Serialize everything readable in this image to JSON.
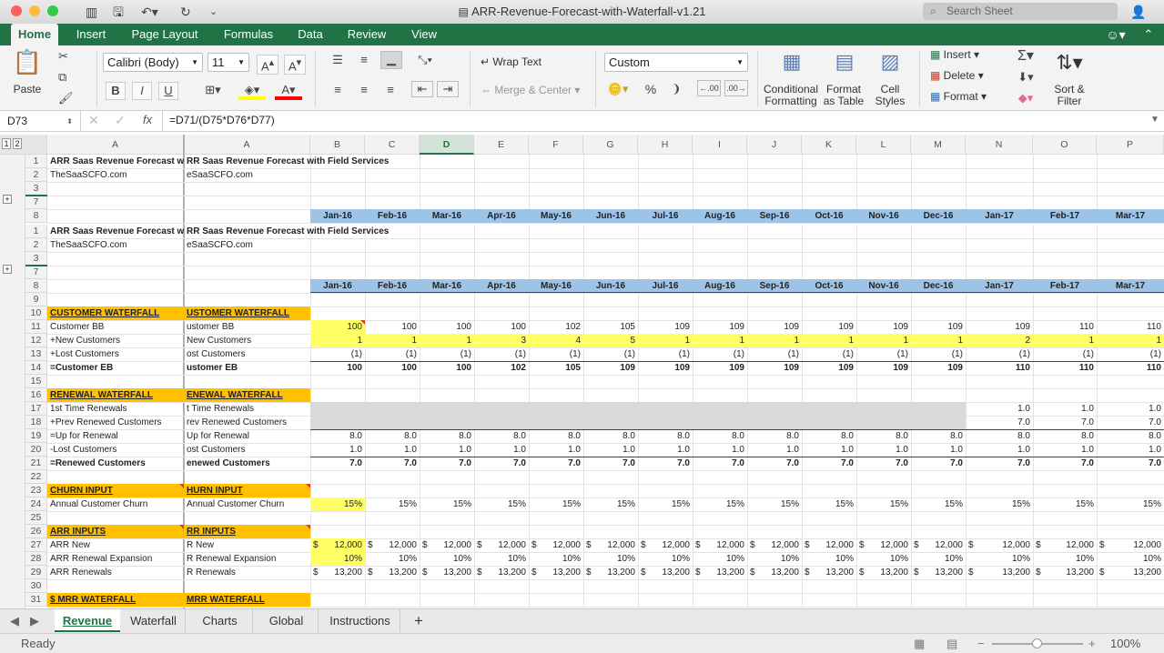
{
  "window": {
    "title": "ARR-Revenue-Forecast-with-Waterfall-v1.21",
    "search_placeholder": "Search Sheet"
  },
  "ribbon_tabs": [
    "Home",
    "Insert",
    "Page Layout",
    "Formulas",
    "Data",
    "Review",
    "View"
  ],
  "ribbon": {
    "paste": "Paste",
    "font_name": "Calibri (Body)",
    "font_size": "11",
    "bold": "B",
    "italic": "I",
    "underline": "U",
    "wrap_text": "Wrap Text",
    "merge_center": "Merge & Center",
    "number_format": "Custom",
    "percent": "%",
    "comma": "❩",
    "inc_decimal": ".00",
    "dec_decimal": ".00",
    "conditional_formatting": "Conditional Formatting",
    "format_as_table": "Format as Table",
    "cell_styles": "Cell Styles",
    "insert": "Insert",
    "delete": "Delete",
    "format": "Format",
    "sort_filter": "Sort & Filter"
  },
  "formula_bar": {
    "name_box": "D73",
    "fx": "fx",
    "formula": "=D71/(D75*D76*D77)"
  },
  "outline_levels": [
    "1",
    "2"
  ],
  "columns": [
    "A",
    "A",
    "B",
    "C",
    "D",
    "E",
    "F",
    "G",
    "H",
    "I",
    "J",
    "K",
    "L",
    "M",
    "N",
    "O",
    "P"
  ],
  "months": [
    "Jan-16",
    "Feb-16",
    "Mar-16",
    "Apr-16",
    "May-16",
    "Jun-16",
    "Jul-16",
    "Aug-16",
    "Sep-16",
    "Oct-16",
    "Nov-16",
    "Dec-16",
    "Jan-17",
    "Feb-17",
    "Mar-17"
  ],
  "frozen": {
    "title_left": "ARR Saas Revenue Forecast w",
    "title_right": "RR Saas Revenue Forecast with Field Services",
    "site_left": "TheSaaSCFO.com",
    "site_right": "eSaaSCFO.com"
  },
  "rows": [
    {
      "n": "10",
      "left": "CUSTOMER WATERFALL",
      "right": "USTOMER WATERFALL",
      "section": true,
      "vals": []
    },
    {
      "n": "11",
      "left": "Customer BB",
      "right": "ustomer BB",
      "vals": [
        "100",
        "100",
        "100",
        "100",
        "102",
        "105",
        "109",
        "109",
        "109",
        "109",
        "109",
        "109",
        "109",
        "110",
        "110"
      ]
    },
    {
      "n": "12",
      "left": "+New Customers",
      "right": "New Customers",
      "vals": [
        "1",
        "1",
        "1",
        "3",
        "4",
        "5",
        "1",
        "1",
        "1",
        "1",
        "1",
        "1",
        "2",
        "1",
        "1"
      ]
    },
    {
      "n": "13",
      "left": "+Lost Customers",
      "right": "ost Customers",
      "vals": [
        "(1)",
        "(1)",
        "(1)",
        "(1)",
        "(1)",
        "(1)",
        "(1)",
        "(1)",
        "(1)",
        "(1)",
        "(1)",
        "(1)",
        "(1)",
        "(1)",
        "(1)"
      ]
    },
    {
      "n": "14",
      "left": "=Customer EB",
      "right": "ustomer EB",
      "bold": true,
      "vals": [
        "100",
        "100",
        "100",
        "102",
        "105",
        "109",
        "109",
        "109",
        "109",
        "109",
        "109",
        "109",
        "110",
        "110",
        "110"
      ]
    },
    {
      "n": "15",
      "left": "",
      "right": "",
      "vals": []
    },
    {
      "n": "16",
      "left": "RENEWAL WATERFALL",
      "right": "ENEWAL WATERFALL",
      "section": true,
      "vals": []
    },
    {
      "n": "17",
      "left": "1st Time Renewals",
      "right": "t Time Renewals",
      "vals": [
        "",
        "",
        "",
        "",
        "",
        "",
        "",
        "",
        "",
        "",
        "",
        "",
        "1.0",
        "1.0",
        "1.0"
      ]
    },
    {
      "n": "18",
      "left": "+Prev Renewed Customers",
      "right": "rev Renewed Customers",
      "vals": [
        "",
        "",
        "",
        "",
        "",
        "",
        "",
        "",
        "",
        "",
        "",
        "",
        "7.0",
        "7.0",
        "7.0"
      ]
    },
    {
      "n": "19",
      "left": "=Up for Renewal",
      "right": "Up for Renewal",
      "vals": [
        "8.0",
        "8.0",
        "8.0",
        "8.0",
        "8.0",
        "8.0",
        "8.0",
        "8.0",
        "8.0",
        "8.0",
        "8.0",
        "8.0",
        "8.0",
        "8.0",
        "8.0"
      ]
    },
    {
      "n": "20",
      "left": "-Lost Customers",
      "right": "ost Customers",
      "vals": [
        "1.0",
        "1.0",
        "1.0",
        "1.0",
        "1.0",
        "1.0",
        "1.0",
        "1.0",
        "1.0",
        "1.0",
        "1.0",
        "1.0",
        "1.0",
        "1.0",
        "1.0"
      ]
    },
    {
      "n": "21",
      "left": "=Renewed Customers",
      "right": "enewed Customers",
      "bold": true,
      "vals": [
        "7.0",
        "7.0",
        "7.0",
        "7.0",
        "7.0",
        "7.0",
        "7.0",
        "7.0",
        "7.0",
        "7.0",
        "7.0",
        "7.0",
        "7.0",
        "7.0",
        "7.0"
      ]
    },
    {
      "n": "22",
      "left": "",
      "right": "",
      "vals": []
    },
    {
      "n": "23",
      "left": "CHURN INPUT",
      "right": "HURN INPUT",
      "section": true,
      "vals": []
    },
    {
      "n": "24",
      "left": "Annual Customer Churn",
      "right": "Annual Customer Churn",
      "vals": [
        "15%",
        "15%",
        "15%",
        "15%",
        "15%",
        "15%",
        "15%",
        "15%",
        "15%",
        "15%",
        "15%",
        "15%",
        "15%",
        "15%",
        "15%"
      ]
    },
    {
      "n": "25",
      "left": "",
      "right": "",
      "vals": []
    },
    {
      "n": "26",
      "left": "ARR INPUTS",
      "right": "RR INPUTS",
      "section": true,
      "vals": []
    },
    {
      "n": "27",
      "left": "ARR New",
      "right": "R New",
      "dollar": true,
      "vals": [
        "12,000",
        "12,000",
        "12,000",
        "12,000",
        "12,000",
        "12,000",
        "12,000",
        "12,000",
        "12,000",
        "12,000",
        "12,000",
        "12,000",
        "12,000",
        "12,000",
        "12,000"
      ]
    },
    {
      "n": "28",
      "left": "ARR Renewal Expansion",
      "right": "R Renewal Expansion",
      "vals": [
        "10%",
        "10%",
        "10%",
        "10%",
        "10%",
        "10%",
        "10%",
        "10%",
        "10%",
        "10%",
        "10%",
        "10%",
        "10%",
        "10%",
        "10%"
      ]
    },
    {
      "n": "29",
      "left": "ARR Renewals",
      "right": "R Renewals",
      "dollar": true,
      "vals": [
        "13,200",
        "13,200",
        "13,200",
        "13,200",
        "13,200",
        "13,200",
        "13,200",
        "13,200",
        "13,200",
        "13,200",
        "13,200",
        "13,200",
        "13,200",
        "13,200",
        "13,200"
      ]
    },
    {
      "n": "30",
      "left": "",
      "right": "",
      "vals": []
    },
    {
      "n": "31",
      "left": "$ MRR WATERFALL",
      "right": "MRR WATERFALL",
      "section": true,
      "vals": []
    }
  ],
  "upper_rows": [
    "1",
    "2",
    "3",
    "7",
    "8"
  ],
  "lower_rows": [
    "1",
    "2",
    "3",
    "7",
    "8",
    "9"
  ],
  "sheet_tabs": [
    "Revenue",
    "Waterfall",
    "Charts",
    "Global",
    "Instructions"
  ],
  "status": {
    "text": "Ready",
    "zoom": "100%"
  },
  "colors": {
    "accent": "#217346",
    "month_band": "#9dc3e6",
    "section": "#ffc000",
    "input_yellow": "#ffff66",
    "gray_block": "#d9d9d9"
  }
}
